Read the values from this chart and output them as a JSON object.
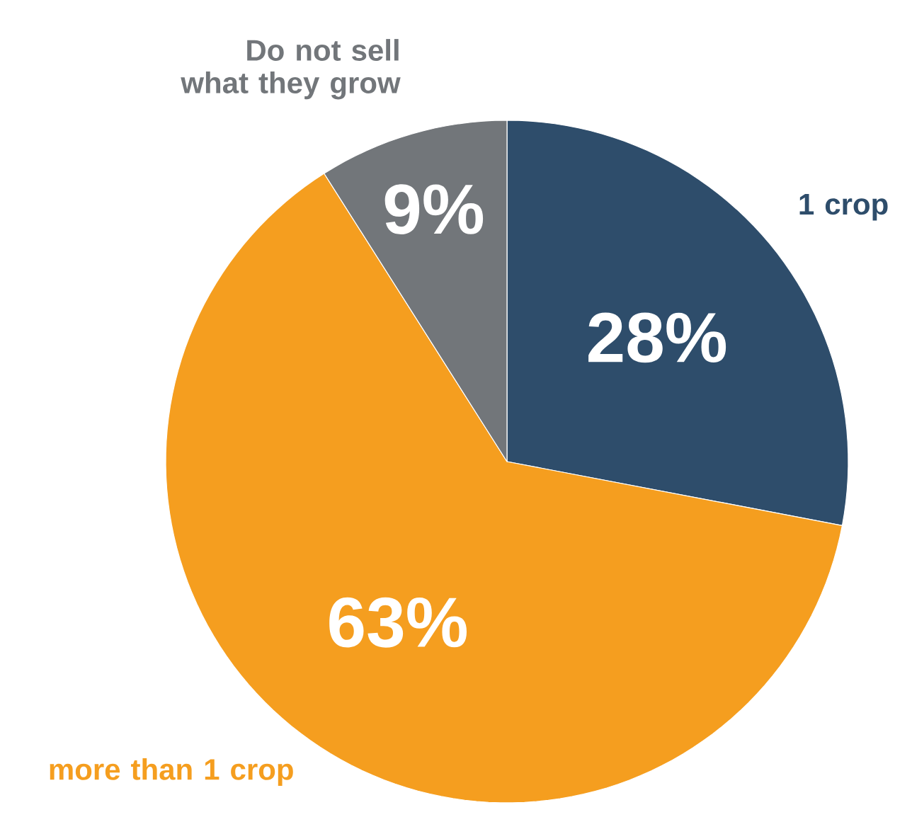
{
  "chart_data": {
    "type": "pie",
    "categories": [
      "1 crop",
      "more than 1 crop",
      "Do not sell what they grow"
    ],
    "values": [
      28,
      63,
      9
    ],
    "value_labels": [
      "28%",
      "63%",
      "9%"
    ],
    "colors": [
      "#2e4d6b",
      "#f59e1f",
      "#72767a"
    ]
  }
}
